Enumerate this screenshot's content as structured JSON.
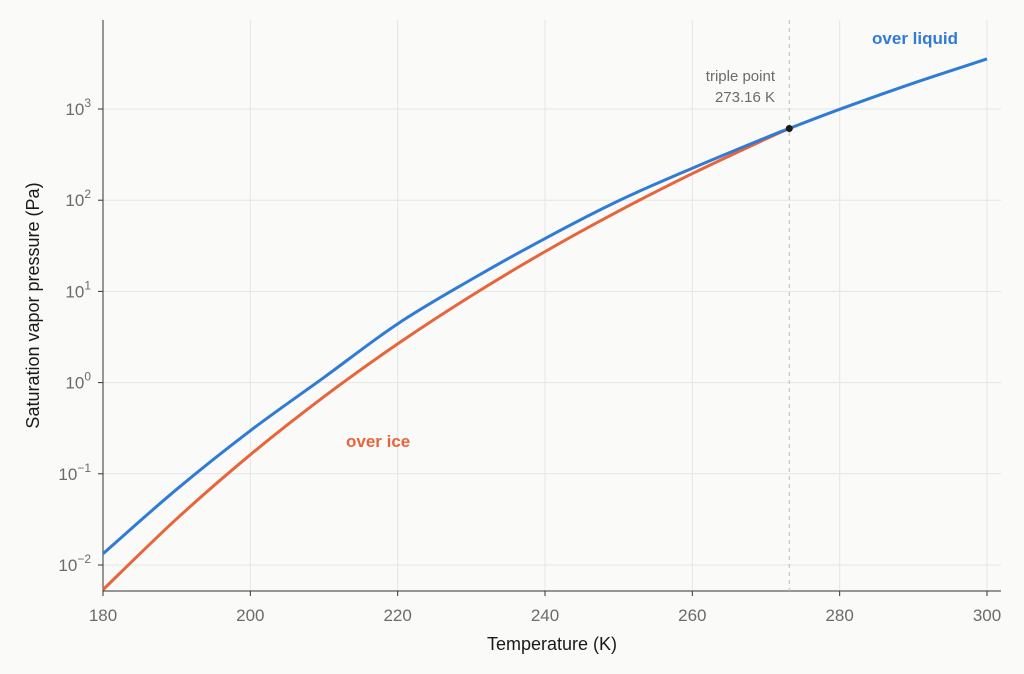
{
  "chart_data": {
    "type": "line",
    "title": "",
    "xlabel": "Temperature (K)",
    "ylabel": "Saturation vapor pressure (Pa)",
    "xlim": [
      180,
      302
    ],
    "ylim": [
      0.005,
      8000
    ],
    "yscale": "log",
    "grid": true,
    "x_ticks": [
      180,
      200,
      220,
      240,
      260,
      280,
      300
    ],
    "y_ticks": [
      {
        "value": 0.01,
        "base": "10",
        "exp": "−2"
      },
      {
        "value": 0.1,
        "base": "10",
        "exp": "−1"
      },
      {
        "value": 1,
        "base": "10",
        "exp": "0"
      },
      {
        "value": 10,
        "base": "10",
        "exp": "1"
      },
      {
        "value": 100,
        "base": "10",
        "exp": "2"
      },
      {
        "value": 1000,
        "base": "10",
        "exp": "3"
      }
    ],
    "series": [
      {
        "name": "over liquid",
        "color": "#2f7bd6",
        "x": [
          180,
          190,
          200,
          210,
          220,
          230,
          240,
          250,
          260,
          270,
          273.16,
          280,
          290,
          300
        ],
        "y": [
          0.0133,
          0.0676,
          0.297,
          1.14,
          4.41,
          13.5,
          38.0,
          98.6,
          224,
          485,
          611.7,
          992,
          1919,
          3536
        ]
      },
      {
        "name": "over ice",
        "color": "#e8643a",
        "x": [
          180,
          190,
          200,
          210,
          220,
          230,
          240,
          250,
          260,
          270,
          273.16
        ],
        "y": [
          0.00536,
          0.0321,
          0.162,
          0.701,
          2.66,
          8.97,
          27.3,
          76.0,
          195.8,
          469.9,
          611.7
        ]
      }
    ],
    "annotations": {
      "triple_point": {
        "x": 273.16,
        "y": 611.7,
        "line1": "triple point",
        "line2": "273.16 K"
      }
    }
  }
}
